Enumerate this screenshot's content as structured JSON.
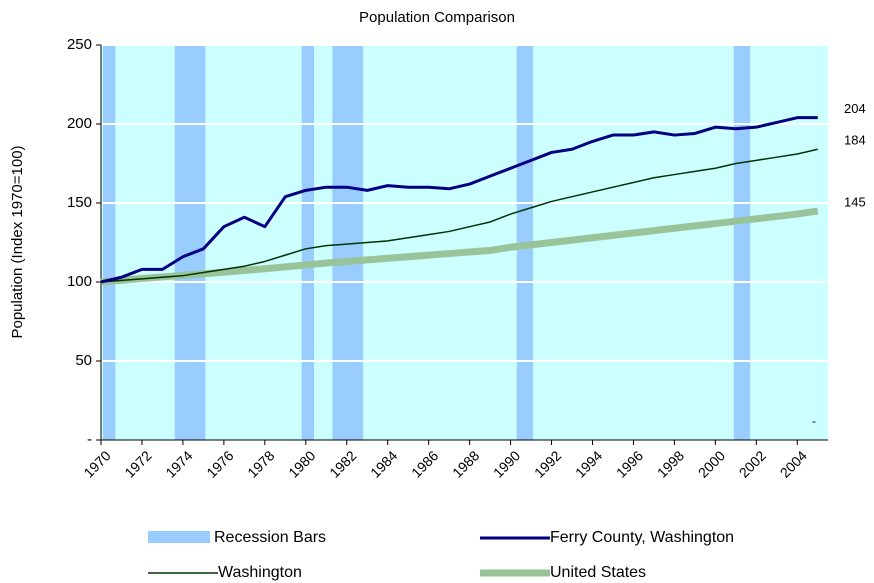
{
  "chart_data": {
    "type": "line",
    "title": "Population Comparison",
    "y_label": "Population (Index 1970=100)",
    "x": [
      1970,
      1971,
      1972,
      1973,
      1974,
      1975,
      1976,
      1977,
      1978,
      1979,
      1980,
      1981,
      1982,
      1983,
      1984,
      1985,
      1986,
      1987,
      1988,
      1989,
      1990,
      1991,
      1992,
      1993,
      1994,
      1995,
      1996,
      1997,
      1998,
      1999,
      2000,
      2001,
      2002,
      2003,
      2004,
      2005
    ],
    "xlim": [
      1970,
      2005.5
    ],
    "xticks": [
      1970,
      1972,
      1974,
      1976,
      1978,
      1980,
      1982,
      1984,
      1986,
      1988,
      1990,
      1992,
      1994,
      1996,
      1998,
      2000,
      2002,
      2004
    ],
    "ylim": [
      0,
      250
    ],
    "yticks": [
      {
        "value": 0,
        "label": "-"
      },
      50,
      100,
      150,
      200,
      250
    ],
    "grid": true,
    "recessions": {
      "name": "Recession Bars",
      "color": "#99ccff",
      "spans": [
        {
          "start": 1970.1,
          "end": 1970.7
        },
        {
          "start": 1973.6,
          "end": 1975.1
        },
        {
          "start": 1979.8,
          "end": 1980.4
        },
        {
          "start": 1981.3,
          "end": 1982.8
        },
        {
          "start": 1990.3,
          "end": 1991.1
        },
        {
          "start": 2000.9,
          "end": 2001.7
        }
      ]
    },
    "series": [
      {
        "name": "Ferry County, Washington",
        "color": "#000080",
        "width": 3,
        "values": [
          100,
          103,
          108,
          108,
          116,
          121,
          135,
          141,
          135,
          154,
          158,
          160,
          160,
          158,
          161,
          160,
          160,
          159,
          162,
          167,
          172,
          177,
          182,
          184,
          189,
          193,
          193,
          195,
          193,
          194,
          198,
          197,
          198,
          201,
          204,
          204
        ]
      },
      {
        "name": "Washington",
        "color": "#003300",
        "width": 1.5,
        "values": [
          100,
          101,
          102,
          103,
          104,
          106,
          108,
          110,
          113,
          117,
          121,
          123,
          124,
          125,
          126,
          128,
          130,
          132,
          135,
          138,
          143,
          147,
          151,
          154,
          157,
          160,
          163,
          166,
          168,
          170,
          172,
          175,
          177,
          179,
          181,
          184
        ]
      },
      {
        "name": "United States",
        "color": "#99c399",
        "width": 7,
        "values": [
          100,
          101.1,
          102.2,
          103.2,
          104.2,
          105.2,
          106.2,
          107.3,
          108.4,
          109.6,
          110.8,
          112,
          113,
          114,
          115,
          116,
          117,
          118,
          119,
          120,
          122,
          123.5,
          125,
          126.5,
          128,
          129.5,
          131,
          132.5,
          134,
          135.5,
          137,
          138.5,
          140,
          141.5,
          143,
          145
        ]
      }
    ],
    "annotation": "-"
  }
}
